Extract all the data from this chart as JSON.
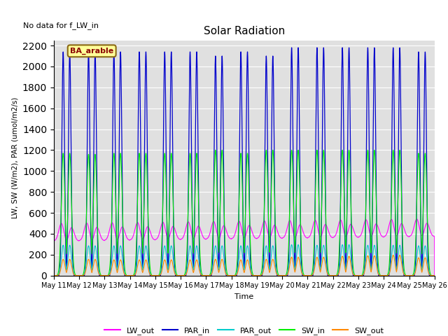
{
  "title": "Solar Radiation",
  "subtitle": "No data for f_LW_in",
  "xlabel": "Time",
  "ylabel": "LW, SW (W/m2), PAR (umol/m2/s)",
  "legend_label": "BA_arable",
  "ylim": [
    0,
    2250
  ],
  "num_days": 15,
  "background_color": "#e0e0e0",
  "series": {
    "LW_out": {
      "color": "#ff00ff",
      "label": "LW_out"
    },
    "PAR_in": {
      "color": "#0000cc",
      "label": "PAR_in"
    },
    "PAR_out": {
      "color": "#00cccc",
      "label": "PAR_out"
    },
    "SW_in": {
      "color": "#00ee00",
      "label": "SW_in"
    },
    "SW_out": {
      "color": "#ff8800",
      "label": "SW_out"
    }
  },
  "tick_labels": [
    "May 11",
    "May 12",
    "May 13",
    "May 14",
    "May 15",
    "May 16",
    "May 17",
    "May 18",
    "May 19",
    "May 20",
    "May 21",
    "May 22",
    "May 23",
    "May 24",
    "May 25",
    "May 26"
  ]
}
